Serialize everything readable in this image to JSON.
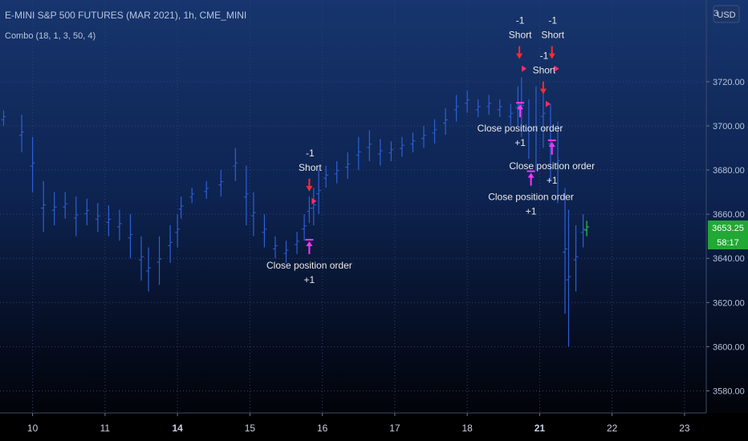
{
  "header": {
    "title": "E-MINI S&P 500 FUTURES (MAR 2021), 1h, CME_MINI",
    "indicator": "Combo (18, 1, 3, 50, 4)"
  },
  "currency_button": "USD",
  "price_axis": {
    "top_label": "3",
    "last_price": "3653.25",
    "countdown": "58:17"
  },
  "chart_data": {
    "type": "bar",
    "title": "E-MINI S&P 500 FUTURES (MAR 2021), 1h, CME_MINI",
    "ylim": [
      3570,
      3757
    ],
    "yticks": [
      "3720.00",
      "3700.00",
      "3680.00",
      "3660.00",
      "3640.00",
      "3620.00",
      "3600.00",
      "3580.00"
    ],
    "xticks": [
      {
        "label": "10",
        "bold": false,
        "x": 10
      },
      {
        "label": "11",
        "bold": false,
        "x": 11
      },
      {
        "label": "14",
        "bold": true,
        "x": 12
      },
      {
        "label": "15",
        "bold": false,
        "x": 13
      },
      {
        "label": "16",
        "bold": false,
        "x": 14
      },
      {
        "label": "17",
        "bold": false,
        "x": 15
      },
      {
        "label": "18",
        "bold": false,
        "x": 16
      },
      {
        "label": "21",
        "bold": true,
        "x": 17
      },
      {
        "label": "22",
        "bold": false,
        "x": 18
      },
      {
        "label": "23",
        "bold": false,
        "x": 19
      }
    ],
    "xlim": [
      9.55,
      19.3
    ],
    "grid": true,
    "series": [
      {
        "values": [
          [
            9.6,
            3707,
            3700
          ],
          [
            9.85,
            3705,
            3688
          ],
          [
            10.0,
            3695,
            3670
          ],
          [
            10.15,
            3675,
            3652
          ],
          [
            10.3,
            3670,
            3655
          ],
          [
            10.45,
            3670,
            3658
          ],
          [
            10.6,
            3668,
            3650
          ],
          [
            10.75,
            3667,
            3655
          ],
          [
            10.9,
            3665,
            3652
          ],
          [
            11.05,
            3664,
            3650
          ],
          [
            11.2,
            3662,
            3648
          ],
          [
            11.35,
            3660,
            3640
          ],
          [
            11.5,
            3650,
            3630
          ],
          [
            11.6,
            3645,
            3625
          ],
          [
            11.75,
            3650,
            3628
          ],
          [
            11.9,
            3655,
            3638
          ],
          [
            12.0,
            3660,
            3645
          ],
          [
            12.05,
            3668,
            3658
          ],
          [
            12.2,
            3672,
            3665
          ],
          [
            12.4,
            3675,
            3667
          ],
          [
            12.6,
            3680,
            3668
          ],
          [
            12.8,
            3690,
            3675
          ],
          [
            12.95,
            3682,
            3655
          ],
          [
            13.05,
            3670,
            3650
          ],
          [
            13.2,
            3660,
            3645
          ],
          [
            13.35,
            3650,
            3640
          ],
          [
            13.5,
            3648,
            3638
          ],
          [
            13.65,
            3652,
            3642
          ],
          [
            13.75,
            3660,
            3648
          ],
          [
            13.82,
            3668,
            3656
          ],
          [
            13.88,
            3672,
            3655
          ],
          [
            13.95,
            3680,
            3660
          ],
          [
            14.05,
            3682,
            3672
          ],
          [
            14.2,
            3684,
            3674
          ],
          [
            14.35,
            3688,
            3676
          ],
          [
            14.5,
            3695,
            3680
          ],
          [
            14.65,
            3698,
            3684
          ],
          [
            14.8,
            3694,
            3682
          ],
          [
            14.95,
            3693,
            3684
          ],
          [
            15.1,
            3695,
            3686
          ],
          [
            15.25,
            3697,
            3688
          ],
          [
            15.4,
            3700,
            3690
          ],
          [
            15.55,
            3703,
            3692
          ],
          [
            15.7,
            3708,
            3696
          ],
          [
            15.85,
            3714,
            3702
          ],
          [
            16.0,
            3716,
            3706
          ],
          [
            16.15,
            3712,
            3704
          ],
          [
            16.3,
            3714,
            3705
          ],
          [
            16.45,
            3712,
            3704
          ],
          [
            16.6,
            3710,
            3700
          ],
          [
            16.7,
            3718,
            3700
          ],
          [
            16.75,
            3722,
            3695
          ],
          [
            16.85,
            3712,
            3685
          ],
          [
            16.95,
            3718,
            3680
          ],
          [
            17.05,
            3720,
            3690
          ],
          [
            17.15,
            3710,
            3675
          ],
          [
            17.25,
            3702,
            3665
          ],
          [
            17.35,
            3672,
            3615
          ],
          [
            17.4,
            3662,
            3600
          ],
          [
            17.5,
            3655,
            3625
          ],
          [
            17.6,
            3660,
            3645
          ],
          [
            17.65,
            3657,
            3650
          ]
        ]
      }
    ],
    "annotations": [
      {
        "kind": "short",
        "x": 13.82,
        "price": 3671,
        "text1": "-1",
        "text2": "Short"
      },
      {
        "kind": "close",
        "x": 13.82,
        "price": 3647,
        "text1": "Close position order",
        "text2": "+1"
      },
      {
        "kind": "short",
        "x": 16.72,
        "price": 3731,
        "text1": "-1",
        "text2": "Short"
      },
      {
        "kind": "close",
        "x": 16.73,
        "price": 3709,
        "text1": "Close position order",
        "text2": "+1"
      },
      {
        "kind": "short",
        "x": 17.05,
        "price": 3715,
        "text1": "-1",
        "text2": "Short"
      },
      {
        "kind": "close",
        "x": 16.88,
        "price": 3678,
        "text1": "Close position order",
        "text2": "+1"
      },
      {
        "kind": "short",
        "x": 17.17,
        "price": 3731,
        "text1": "-1",
        "text2": "Short"
      },
      {
        "kind": "close",
        "x": 17.17,
        "price": 3692,
        "text1": "Close position order",
        "text2": "+1"
      }
    ]
  }
}
